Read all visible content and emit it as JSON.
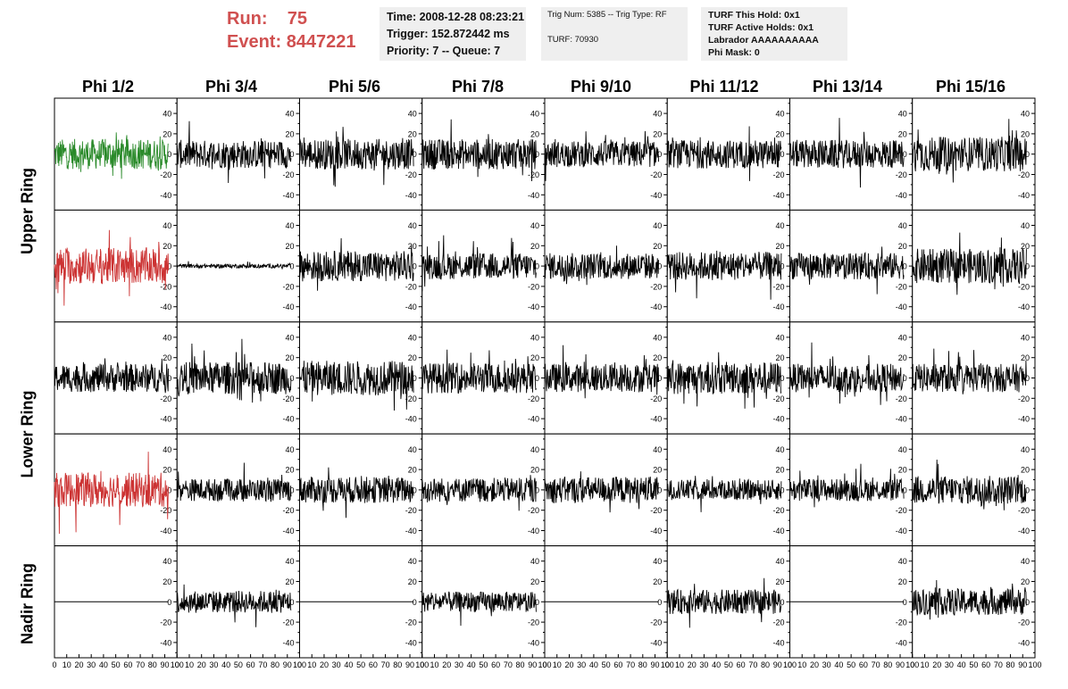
{
  "header": {
    "run_label": "Run:",
    "run_value": "75",
    "event_label": "Event:",
    "event_value": "8447221"
  },
  "info_time": {
    "time": "Time: 2008-12-28 08:23:21",
    "trigger": "Trigger: 152.872442 ms",
    "priority": "Priority: 7 -- Queue: 7"
  },
  "info_trig": {
    "trig": "Trig Num: 5385 -- Trig Type: RF",
    "turf": "TURF: 70930"
  },
  "info_turf": {
    "hold": "TURF This Hold: 0x1",
    "active": "TURF Active Holds: 0x1",
    "labrador": "Labrador AAAAAAAAAA",
    "phimask": "Phi Mask: 0"
  },
  "columns": [
    "Phi 1/2",
    "Phi 3/4",
    "Phi 5/6",
    "Phi 7/8",
    "Phi 9/10",
    "Phi 11/12",
    "Phi 13/14",
    "Phi 15/16"
  ],
  "ring_labels": {
    "upper": "Upper Ring",
    "lower": "Lower Ring",
    "nadir": "Nadir Ring"
  },
  "colors": {
    "title": "#d05050",
    "trace": "#000000",
    "green": "#2a8a2a",
    "red": "#cc3333",
    "panel_bg": "#efefef"
  },
  "chart_data": {
    "type": "line",
    "x_ticks": [
      "0",
      "10",
      "20",
      "30",
      "40",
      "50",
      "60",
      "70",
      "80",
      "90",
      "100"
    ],
    "y_ticks": [
      "40",
      "20",
      "0",
      "-20",
      "-40"
    ],
    "xlim": [
      0,
      100
    ],
    "ylim": [
      -55,
      55
    ],
    "grid": false,
    "rows": 5,
    "cols": 8,
    "trace_colors": [
      [
        "green",
        "trace",
        "trace",
        "trace",
        "trace",
        "trace",
        "trace",
        "trace"
      ],
      [
        "red",
        "trace",
        "trace",
        "trace",
        "trace",
        "trace",
        "trace",
        "trace"
      ],
      [
        "trace",
        "trace",
        "trace",
        "trace",
        "trace",
        "trace",
        "trace",
        "trace"
      ],
      [
        "red",
        "trace",
        "trace",
        "trace",
        "trace",
        "trace",
        "trace",
        "trace"
      ],
      [
        "trace",
        "trace",
        "trace",
        "trace",
        "trace",
        "trace",
        "trace",
        "trace"
      ]
    ],
    "amplitudes": [
      [
        15,
        14,
        15,
        15,
        13,
        14,
        14,
        17
      ],
      [
        18,
        2,
        15,
        13,
        13,
        14,
        13,
        17
      ],
      [
        14,
        16,
        17,
        15,
        14,
        16,
        14,
        14
      ],
      [
        17,
        11,
        13,
        12,
        13,
        10,
        11,
        14
      ],
      [
        0,
        11,
        0,
        10,
        0,
        12,
        0,
        13
      ]
    ]
  }
}
